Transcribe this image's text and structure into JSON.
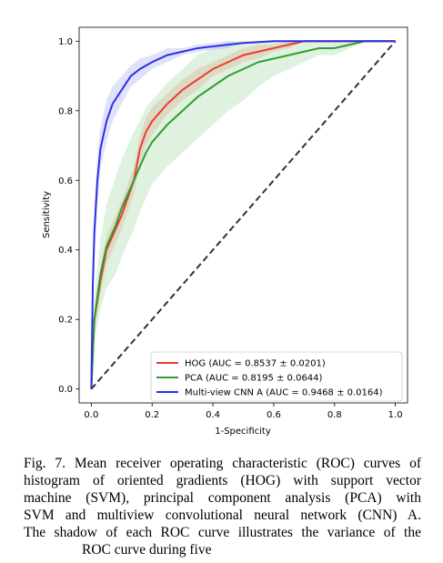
{
  "chart_data": {
    "type": "line",
    "xlabel": "1-Specificity",
    "ylabel": "Sensitivity",
    "xlim": [
      -0.04,
      1.04
    ],
    "ylim": [
      -0.04,
      1.04
    ],
    "xticks": [
      "0.0",
      "0.2",
      "0.4",
      "0.6",
      "0.8",
      "1.0"
    ],
    "yticks": [
      "0.0",
      "0.2",
      "0.4",
      "0.6",
      "0.8",
      "1.0"
    ],
    "legend_position": "lower-right",
    "series": [
      {
        "name": "HOG (AUC = 0.8537 ± 0.0201)",
        "color": "#ee3b31",
        "shade": "#f4a58e",
        "x": [
          0.0,
          0.01,
          0.03,
          0.05,
          0.08,
          0.1,
          0.12,
          0.14,
          0.16,
          0.18,
          0.2,
          0.25,
          0.3,
          0.35,
          0.4,
          0.45,
          0.5,
          0.55,
          0.6,
          0.65,
          0.7,
          0.75,
          0.8,
          0.85,
          0.9,
          0.95,
          1.0
        ],
        "y": [
          0.0,
          0.2,
          0.31,
          0.4,
          0.46,
          0.5,
          0.55,
          0.6,
          0.69,
          0.74,
          0.77,
          0.82,
          0.86,
          0.89,
          0.92,
          0.94,
          0.96,
          0.97,
          0.98,
          0.99,
          1.0,
          1.0,
          1.0,
          1.0,
          1.0,
          1.0,
          1.0
        ],
        "spread": [
          0.0,
          0.03,
          0.04,
          0.04,
          0.04,
          0.04,
          0.04,
          0.04,
          0.04,
          0.04,
          0.04,
          0.03,
          0.03,
          0.03,
          0.02,
          0.02,
          0.02,
          0.02,
          0.01,
          0.01,
          0.0,
          0.0,
          0.0,
          0.0,
          0.0,
          0.0,
          0.0
        ]
      },
      {
        "name": "PCA (AUC = 0.8195 ± 0.0644)",
        "color": "#2e9e2e",
        "shade": "#b9dfb7",
        "x": [
          0.0,
          0.01,
          0.03,
          0.05,
          0.08,
          0.1,
          0.12,
          0.14,
          0.16,
          0.18,
          0.2,
          0.25,
          0.3,
          0.35,
          0.4,
          0.45,
          0.5,
          0.55,
          0.6,
          0.65,
          0.7,
          0.75,
          0.8,
          0.85,
          0.9,
          0.95,
          1.0
        ],
        "y": [
          0.0,
          0.2,
          0.33,
          0.41,
          0.47,
          0.52,
          0.56,
          0.6,
          0.64,
          0.68,
          0.71,
          0.76,
          0.8,
          0.84,
          0.87,
          0.9,
          0.92,
          0.94,
          0.95,
          0.96,
          0.97,
          0.98,
          0.98,
          0.99,
          1.0,
          1.0,
          1.0
        ],
        "spread": [
          0.0,
          0.06,
          0.1,
          0.12,
          0.14,
          0.14,
          0.14,
          0.14,
          0.13,
          0.13,
          0.12,
          0.12,
          0.12,
          0.12,
          0.11,
          0.1,
          0.09,
          0.07,
          0.05,
          0.04,
          0.03,
          0.02,
          0.02,
          0.01,
          0.0,
          0.0,
          0.0
        ]
      },
      {
        "name": "Multi-view CNN A (AUC = 0.9468 ± 0.0164)",
        "color": "#2f2fe8",
        "shade": "#b9bff5",
        "x": [
          0.0,
          0.005,
          0.01,
          0.02,
          0.03,
          0.04,
          0.05,
          0.07,
          0.1,
          0.13,
          0.16,
          0.2,
          0.25,
          0.3,
          0.35,
          0.4,
          0.45,
          0.5,
          0.6,
          0.7,
          0.8,
          0.9,
          1.0
        ],
        "y": [
          0.0,
          0.3,
          0.45,
          0.6,
          0.69,
          0.73,
          0.77,
          0.82,
          0.86,
          0.9,
          0.92,
          0.94,
          0.96,
          0.97,
          0.98,
          0.985,
          0.99,
          0.995,
          1.0,
          1.0,
          1.0,
          1.0,
          1.0
        ],
        "spread": [
          0.0,
          0.08,
          0.08,
          0.07,
          0.06,
          0.06,
          0.06,
          0.05,
          0.04,
          0.03,
          0.03,
          0.02,
          0.02,
          0.01,
          0.01,
          0.01,
          0.01,
          0.0,
          0.0,
          0.0,
          0.0,
          0.0,
          0.0
        ]
      }
    ],
    "reference_line": {
      "x": [
        0.0,
        1.0
      ],
      "y": [
        0.0,
        1.0
      ],
      "color": "#333333",
      "style": "dashed"
    }
  },
  "caption": {
    "lines": [
      "Fig. 7.  Mean receiver operating characteristic (ROC) curves of",
      "histogram of oriented gradients (HOG) with support vector",
      "machine (SVM), principal component analysis (PCA) with",
      "SVM and multiview convolutional neural network (CNN) A.",
      "The shadow of each ROC curve illustrates the variance of the",
      "ROC curve during five"
    ]
  }
}
